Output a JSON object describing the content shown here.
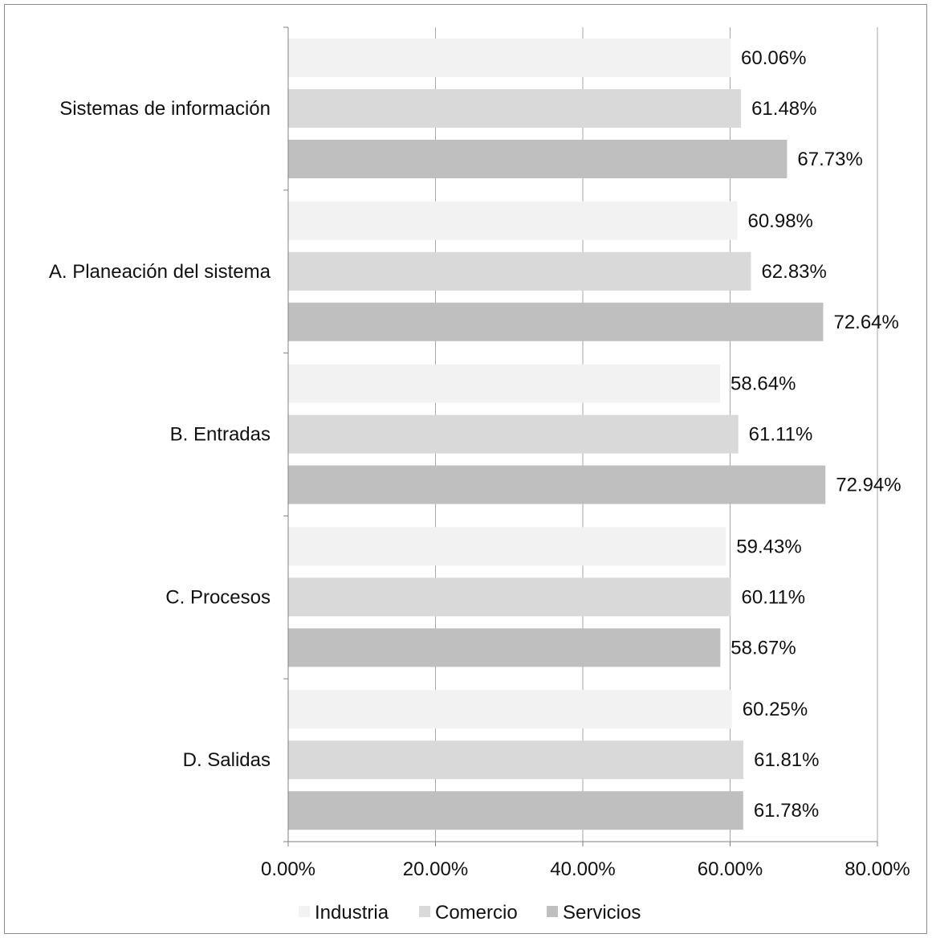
{
  "chart_data": {
    "type": "bar",
    "orientation": "horizontal",
    "categories": [
      "Sistemas de información",
      "A. Planeación del sistema",
      "B. Entradas",
      "C. Procesos",
      "D. Salidas"
    ],
    "series": [
      {
        "name": "Industria",
        "color": "#f2f2f2",
        "values": [
          60.06,
          60.98,
          58.64,
          59.43,
          60.25
        ],
        "labels": [
          "60.06%",
          "60.98%",
          "58.64%",
          "59.43%",
          "60.25%"
        ]
      },
      {
        "name": "Comercio",
        "color": "#d9d9d9",
        "values": [
          61.48,
          62.83,
          61.11,
          60.11,
          61.81
        ],
        "labels": [
          "61.48%",
          "62.83%",
          "61.11%",
          "60.11%",
          "61.81%"
        ]
      },
      {
        "name": "Servicios",
        "color": "#bfbfbf",
        "values": [
          67.73,
          72.64,
          72.94,
          58.67,
          61.78
        ],
        "labels": [
          "67.73%",
          "72.64%",
          "72.94%",
          "58.67%",
          "61.78%"
        ]
      }
    ],
    "x_ticks": [
      0,
      20,
      40,
      60,
      80
    ],
    "x_tick_labels": [
      "0.00%",
      "20.00%",
      "40.00%",
      "60.00%",
      "80.00%"
    ],
    "xlim": [
      0,
      80
    ],
    "title": "",
    "xlabel": "",
    "ylabel": "",
    "grid": "vertical",
    "legend_position": "bottom"
  }
}
